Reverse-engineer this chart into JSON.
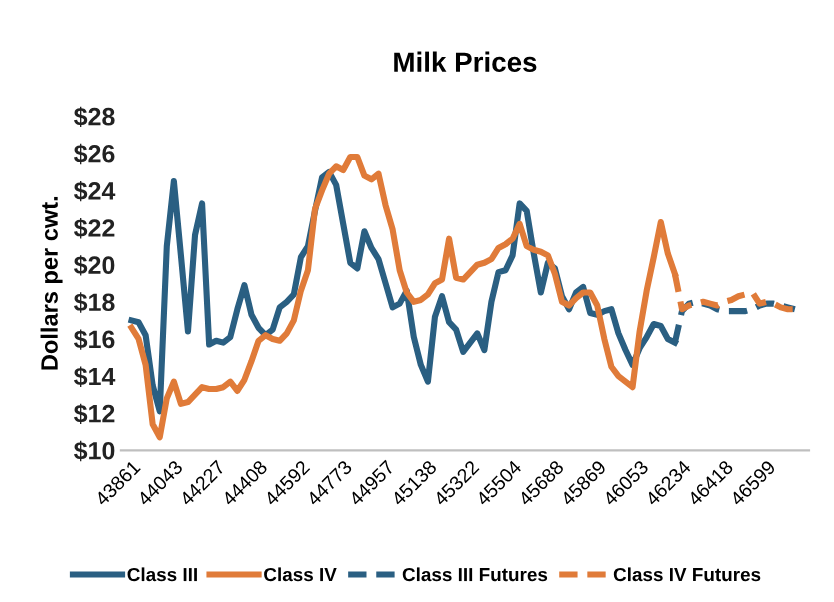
{
  "chart_data": {
    "type": "line",
    "title": "Milk Prices",
    "ylabel": "Dollars per cwt.",
    "categories": [
      "43861",
      null,
      null,
      null,
      null,
      null,
      "44043",
      null,
      null,
      null,
      null,
      null,
      "44227",
      null,
      null,
      null,
      null,
      null,
      "44408",
      null,
      null,
      null,
      null,
      null,
      "44592",
      null,
      null,
      null,
      null,
      null,
      "44773",
      null,
      null,
      null,
      null,
      null,
      "44957",
      null,
      null,
      null,
      null,
      null,
      "45138",
      null,
      null,
      null,
      null,
      null,
      "45322",
      null,
      null,
      null,
      null,
      null,
      "45504",
      null,
      null,
      null,
      null,
      null,
      "45688",
      null,
      null,
      null,
      null,
      null,
      "45869",
      null,
      null,
      null,
      null,
      null,
      "46053",
      null,
      null,
      null,
      null,
      null,
      "46234",
      null,
      null,
      null,
      null,
      null,
      "46418",
      null,
      null,
      null,
      null,
      null,
      "46599",
      null,
      null,
      null,
      null
    ],
    "series": [
      {
        "name": "Class III",
        "color": "#2a5f82",
        "line_style": "solid",
        "values": [
          17.0,
          16.9,
          16.2,
          13.5,
          12.1,
          21.0,
          24.5,
          20.5,
          16.4,
          21.6,
          23.3,
          15.7,
          15.9,
          15.8,
          16.1,
          17.6,
          18.9,
          17.3,
          16.6,
          16.2,
          16.5,
          17.7,
          18.0,
          18.4,
          20.4,
          21.0,
          22.9,
          24.7,
          25.0,
          24.3,
          22.2,
          20.1,
          19.8,
          21.8,
          20.9,
          20.3,
          19.0,
          17.7,
          17.9,
          18.6,
          16.1,
          14.6,
          13.7,
          17.2,
          18.3,
          16.9,
          16.5,
          15.3,
          15.8,
          16.3,
          15.4,
          18.0,
          19.6,
          19.7,
          20.5,
          23.3,
          22.9,
          20.6,
          18.5,
          20.1,
          19.8,
          18.3,
          17.6,
          18.5,
          18.8,
          17.4,
          17.3,
          17.5,
          17.6,
          16.3,
          15.4,
          14.6,
          15.5,
          16.1,
          16.8,
          16.7,
          16.0,
          15.8,
          null,
          null,
          null,
          null,
          null,
          null,
          null,
          null,
          null,
          null,
          null,
          null,
          null,
          null,
          null,
          null,
          null
        ]
      },
      {
        "name": "Class IV",
        "color": "#e07b39",
        "line_style": "solid",
        "values": [
          16.6,
          16.0,
          14.6,
          11.4,
          10.7,
          12.8,
          13.7,
          12.5,
          12.6,
          13.0,
          13.4,
          13.3,
          13.3,
          13.4,
          13.7,
          13.2,
          13.8,
          14.8,
          15.9,
          16.2,
          16.0,
          15.9,
          16.3,
          17.0,
          18.6,
          19.7,
          23.0,
          24.0,
          24.9,
          25.3,
          25.1,
          25.8,
          25.8,
          24.8,
          24.6,
          24.9,
          23.2,
          21.9,
          19.7,
          18.5,
          18.0,
          18.1,
          18.4,
          19.0,
          19.2,
          21.4,
          19.3,
          19.2,
          19.6,
          20.0,
          20.1,
          20.3,
          20.9,
          21.1,
          21.4,
          22.2,
          21.0,
          20.8,
          20.7,
          20.5,
          19.5,
          18.0,
          17.8,
          18.2,
          18.5,
          18.5,
          17.8,
          16.0,
          14.5,
          14.0,
          13.7,
          13.4,
          16.4,
          18.6,
          20.4,
          22.3,
          20.6,
          19.5,
          null,
          null,
          null,
          null,
          null,
          null,
          null,
          null,
          null,
          null,
          null,
          null,
          null,
          null,
          null,
          null,
          null
        ]
      },
      {
        "name": "Class III Futures",
        "color": "#2a5f82",
        "line_style": "dashed",
        "values": [
          null,
          null,
          null,
          null,
          null,
          null,
          null,
          null,
          null,
          null,
          null,
          null,
          null,
          null,
          null,
          null,
          null,
          null,
          null,
          null,
          null,
          null,
          null,
          null,
          null,
          null,
          null,
          null,
          null,
          null,
          null,
          null,
          null,
          null,
          null,
          null,
          null,
          null,
          null,
          null,
          null,
          null,
          null,
          null,
          null,
          null,
          null,
          null,
          null,
          null,
          null,
          null,
          null,
          null,
          null,
          null,
          null,
          null,
          null,
          null,
          null,
          null,
          null,
          null,
          null,
          null,
          null,
          null,
          null,
          null,
          null,
          null,
          null,
          null,
          null,
          null,
          null,
          15.8,
          17.5,
          17.9,
          18.0,
          17.9,
          17.8,
          17.6,
          17.5,
          17.5,
          17.5,
          17.5,
          17.6,
          17.8,
          17.9,
          17.9,
          17.8,
          17.7,
          17.6
        ]
      },
      {
        "name": "Class IV Futures",
        "color": "#e07b39",
        "line_style": "dashed",
        "values": [
          null,
          null,
          null,
          null,
          null,
          null,
          null,
          null,
          null,
          null,
          null,
          null,
          null,
          null,
          null,
          null,
          null,
          null,
          null,
          null,
          null,
          null,
          null,
          null,
          null,
          null,
          null,
          null,
          null,
          null,
          null,
          null,
          null,
          null,
          null,
          null,
          null,
          null,
          null,
          null,
          null,
          null,
          null,
          null,
          null,
          null,
          null,
          null,
          null,
          null,
          null,
          null,
          null,
          null,
          null,
          null,
          null,
          null,
          null,
          null,
          null,
          null,
          null,
          null,
          null,
          null,
          null,
          null,
          null,
          null,
          null,
          null,
          null,
          null,
          null,
          null,
          null,
          19.5,
          17.6,
          17.8,
          17.9,
          18.0,
          17.9,
          17.8,
          18.0,
          18.1,
          18.3,
          18.4,
          18.5,
          17.9,
          18.0,
          17.9,
          17.7,
          17.6,
          17.6
        ]
      }
    ],
    "ylim": [
      10,
      28
    ],
    "yticks": [
      {
        "value": 10,
        "label": "$10"
      },
      {
        "value": 12,
        "label": "$12"
      },
      {
        "value": 14,
        "label": "$14"
      },
      {
        "value": 16,
        "label": "$16"
      },
      {
        "value": 18,
        "label": "$18"
      },
      {
        "value": 20,
        "label": "$20"
      },
      {
        "value": 22,
        "label": "$22"
      },
      {
        "value": 24,
        "label": "$24"
      },
      {
        "value": 26,
        "label": "$26"
      },
      {
        "value": 28,
        "label": "$28"
      }
    ],
    "grid": false,
    "legend": "bottom",
    "marker": "none"
  }
}
